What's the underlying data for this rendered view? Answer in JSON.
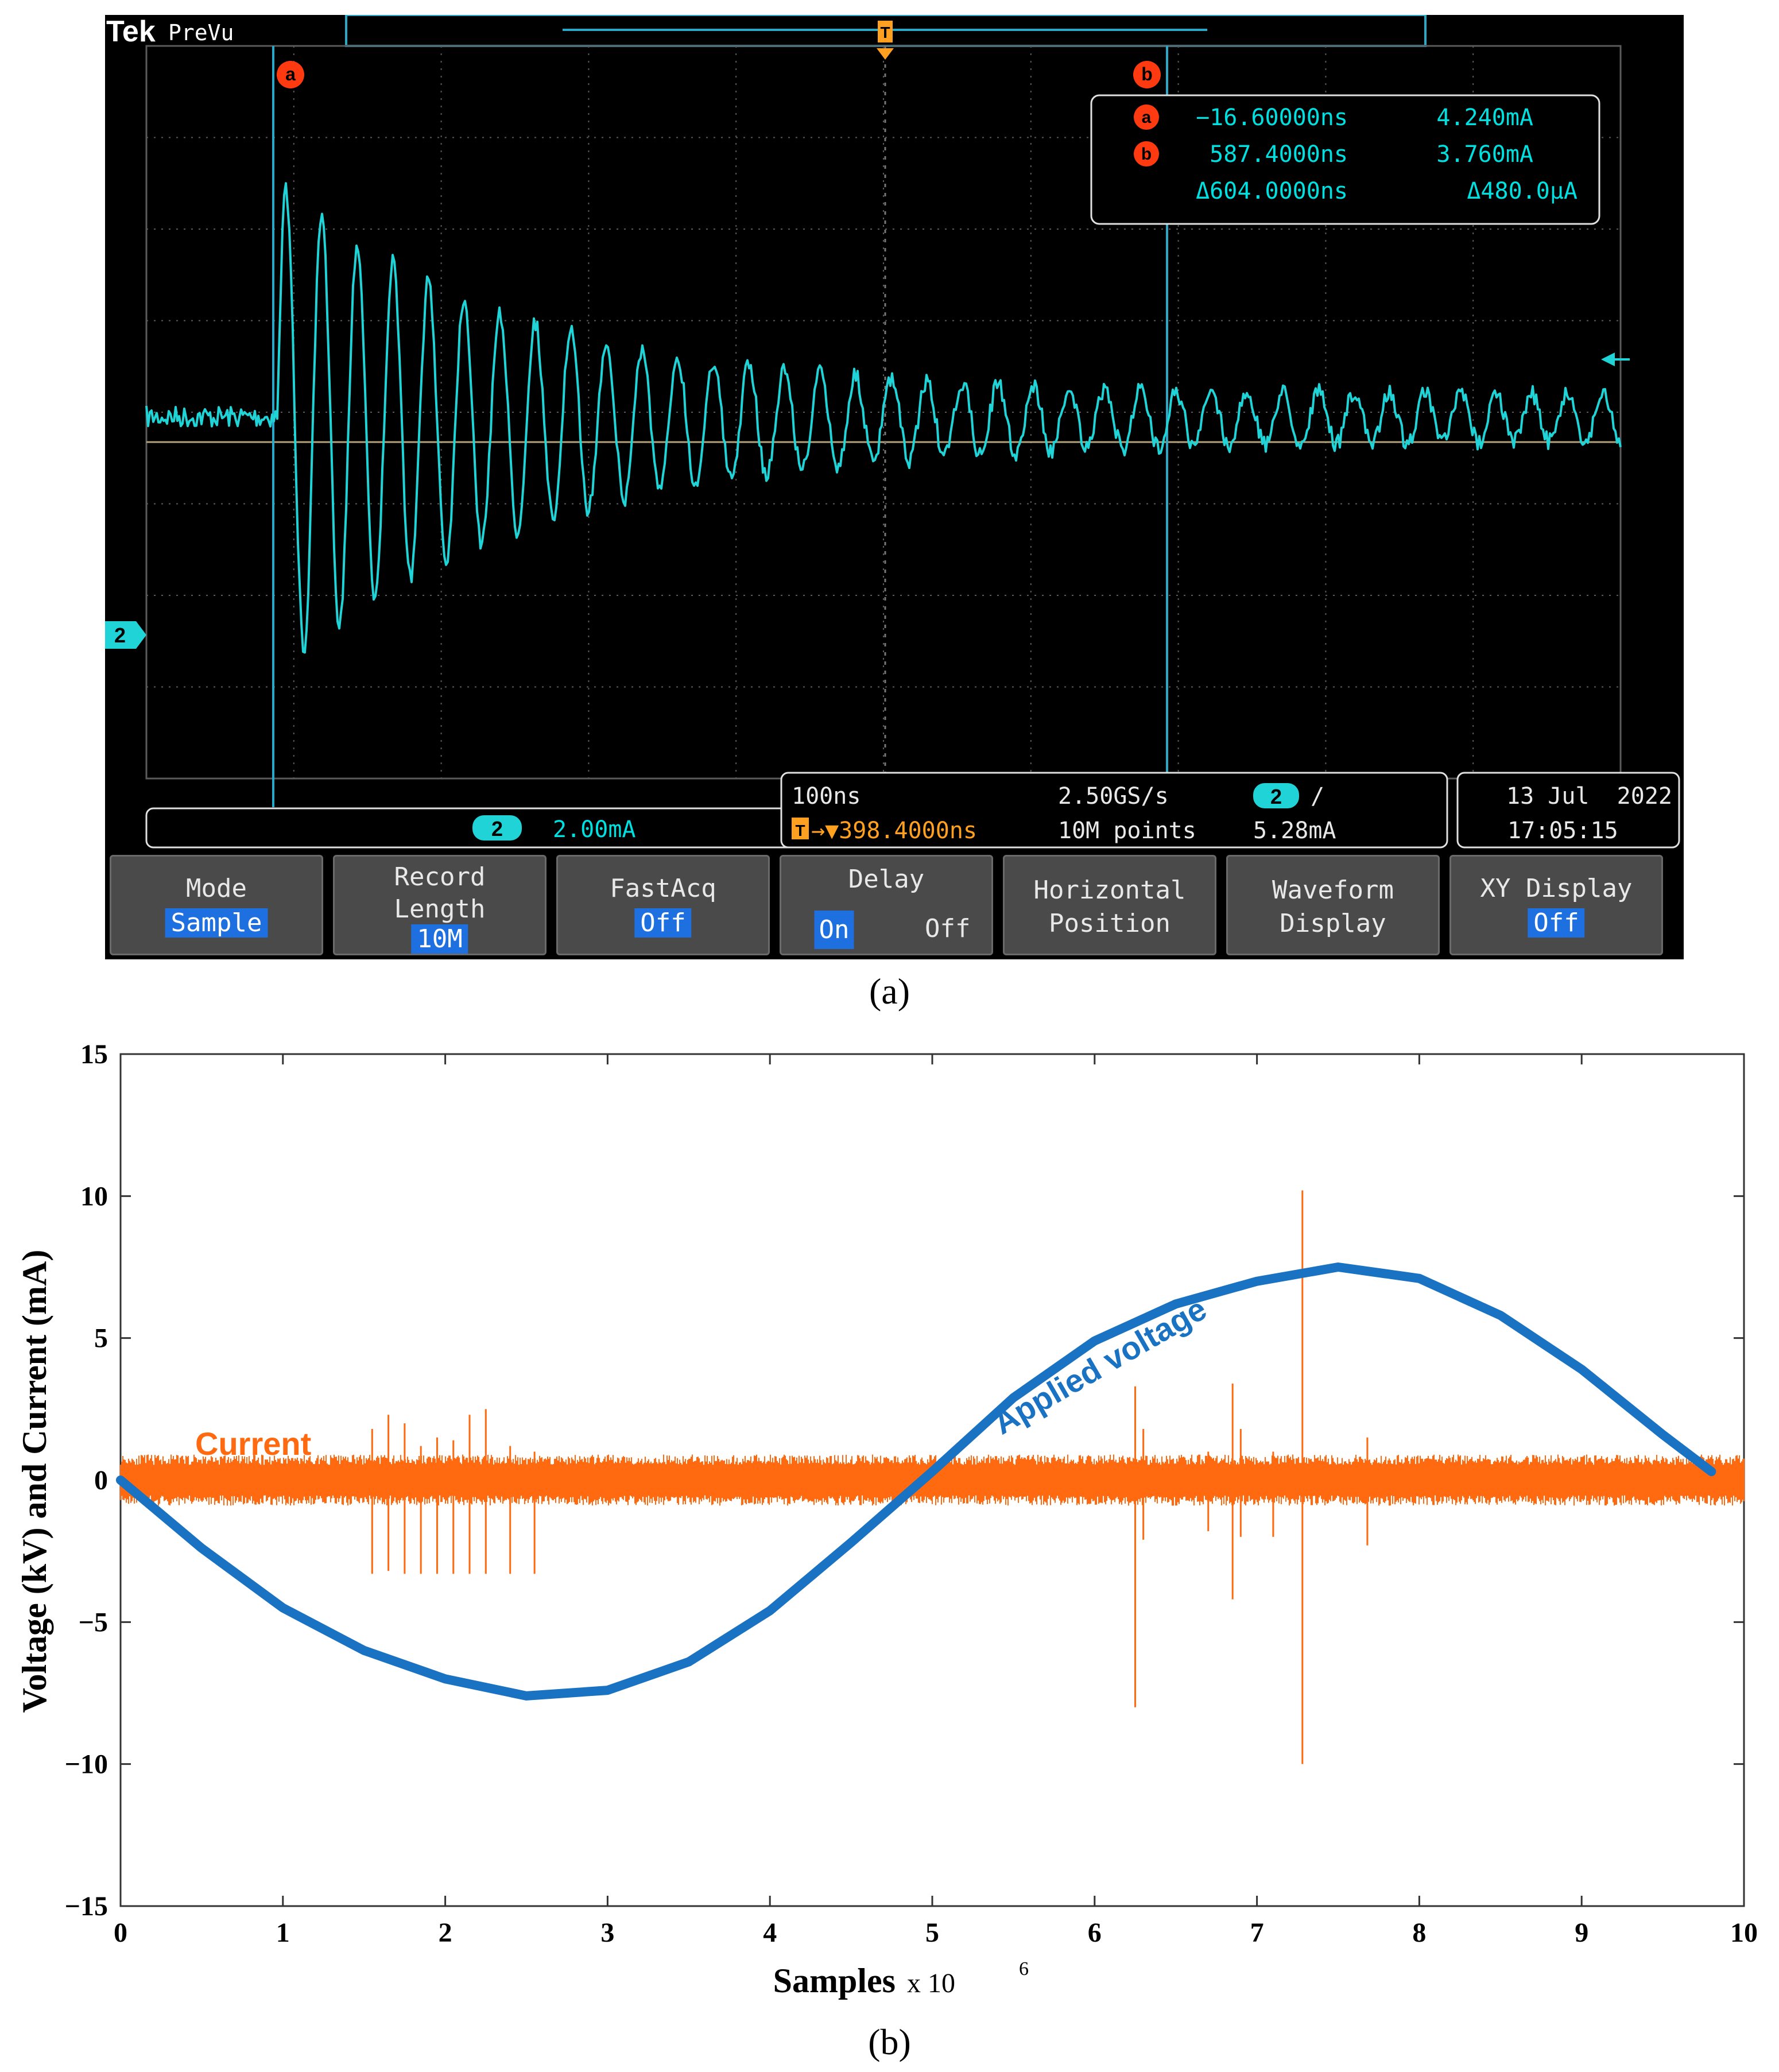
{
  "panel_a": {
    "caption": "(a)",
    "brand": "Tek",
    "mode_label": "PreVu",
    "trigger_marker": "T",
    "cursor_a_label": "a",
    "cursor_b_label": "b",
    "channel_marker": "2",
    "readout": {
      "a_time": "−16.60000ns",
      "a_value": "4.240mA",
      "b_time": "587.4000ns",
      "b_value": "3.760mA",
      "delta_time": "Δ604.0000ns",
      "delta_value": "Δ480.0μA"
    },
    "channel_box": {
      "channel": "2",
      "scale": "2.00mA"
    },
    "horizontal_box": {
      "timebase": "100ns",
      "sample_rate": "2.50GS/s",
      "trigger_channel": "2",
      "trigger_slope": "∕",
      "trigger_position": "→▼398.4000ns",
      "record": "10M points",
      "trigger_level": "5.28mA"
    },
    "date_box": {
      "date": "13 Jul  2022",
      "time": "17:05:15"
    },
    "menu": [
      {
        "label": "Mode",
        "value": "Sample"
      },
      {
        "label": "Record\nLength",
        "value": "10M"
      },
      {
        "label": "FastAcq",
        "value": "Off"
      },
      {
        "label": "Delay",
        "value_on": "On",
        "value_off": "Off"
      },
      {
        "label": "Horizontal\nPosition",
        "value": ""
      },
      {
        "label": "Waveform\nDisplay",
        "value": ""
      },
      {
        "label": "XY Display",
        "value": "Off"
      }
    ],
    "colors": {
      "trace": "#1fd3d6",
      "cursor": "#2aa8c8",
      "marker": "#ff3a10",
      "trigger": "#ffa020",
      "text": "#00e0e0"
    }
  },
  "panel_b": {
    "caption": "(b)",
    "chart_data": {
      "type": "line",
      "xlabel": "Samples",
      "xlabel_suffix": "x 10",
      "xlabel_exp": "6",
      "ylabel": "Voltage (kV) and Current (mA)",
      "xlim": [
        0,
        10
      ],
      "ylim": [
        -15,
        15
      ],
      "xticks": [
        "0",
        "1",
        "2",
        "3",
        "4",
        "5",
        "6",
        "7",
        "8",
        "9",
        "10"
      ],
      "yticks": [
        "15",
        "10",
        "5",
        "0",
        "−5",
        "−10",
        "−15"
      ],
      "grid": false,
      "series": [
        {
          "name": "Applied voltage",
          "color": "#1a72c2",
          "x": [
            0,
            0.5,
            1,
            1.5,
            2,
            2.5,
            3,
            3.5,
            4,
            4.5,
            5,
            5.5,
            6,
            6.5,
            7,
            7.5,
            8,
            8.5,
            9,
            9.5,
            9.8
          ],
          "y": [
            0,
            -2.4,
            -4.5,
            -6.0,
            -7.0,
            -7.6,
            -7.4,
            -6.4,
            -4.6,
            -2.2,
            0.3,
            2.9,
            4.9,
            6.2,
            7.0,
            7.5,
            7.1,
            5.8,
            3.9,
            1.6,
            0.3
          ]
        },
        {
          "name": "Current",
          "color": "#ff6a10",
          "baseline": 0,
          "noise_amplitude": 0.9,
          "spikes": [
            {
              "x": 1.55,
              "min": -3.3,
              "max": 1.8
            },
            {
              "x": 1.65,
              "min": -3.2,
              "max": 2.3
            },
            {
              "x": 1.75,
              "min": -3.3,
              "max": 2.0
            },
            {
              "x": 1.85,
              "min": -3.3,
              "max": 1.2
            },
            {
              "x": 1.95,
              "min": -3.3,
              "max": 1.5
            },
            {
              "x": 2.05,
              "min": -3.3,
              "max": 1.4
            },
            {
              "x": 2.15,
              "min": -3.3,
              "max": 2.3
            },
            {
              "x": 2.25,
              "min": -3.3,
              "max": 2.5
            },
            {
              "x": 2.4,
              "min": -3.3,
              "max": 1.2
            },
            {
              "x": 2.55,
              "min": -3.3,
              "max": 1.0
            },
            {
              "x": 6.25,
              "min": -8.0,
              "max": 3.3
            },
            {
              "x": 6.3,
              "min": -2.1,
              "max": 1.8
            },
            {
              "x": 6.7,
              "min": -1.8,
              "max": 1.0
            },
            {
              "x": 6.85,
              "min": -4.2,
              "max": 3.4
            },
            {
              "x": 6.9,
              "min": -2.0,
              "max": 1.8
            },
            {
              "x": 7.1,
              "min": -2.0,
              "max": 1.0
            },
            {
              "x": 7.28,
              "min": -10.0,
              "max": 10.2
            },
            {
              "x": 7.68,
              "min": -2.3,
              "max": 1.5
            }
          ]
        }
      ]
    }
  }
}
